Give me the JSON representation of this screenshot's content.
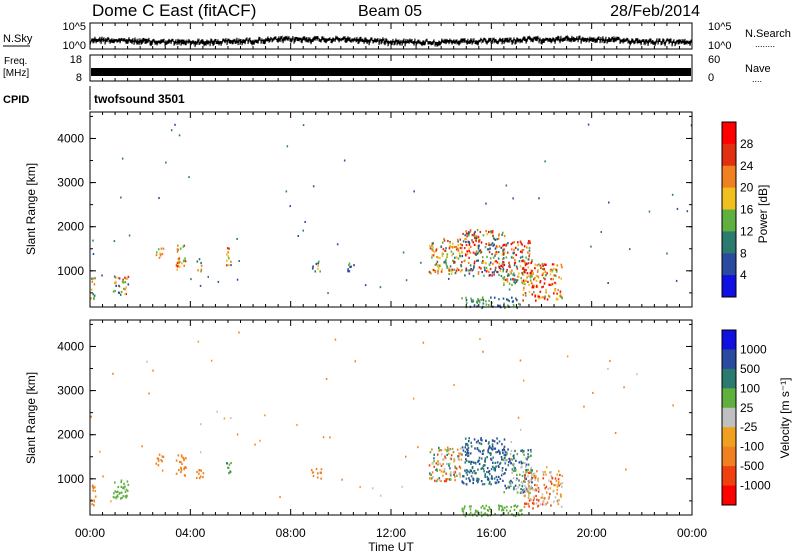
{
  "header": {
    "station": "Dome C East (fitACF)",
    "beam": "Beam 05",
    "date": "28/Feb/2014"
  },
  "nsky_panel": {
    "label": "N.Sky",
    "y_ticks": [
      "10^5",
      "10^0"
    ],
    "right_ticks": [
      "10^5",
      "10^0"
    ],
    "right_label": "N.Search",
    "right_marker": "........"
  },
  "freq_panel": {
    "label_top": "Freq.",
    "label_unit": "[MHz]",
    "y_ticks": [
      "18",
      "8"
    ],
    "right_ticks": [
      "60",
      "0"
    ],
    "right_label": "Nave",
    "right_marker": "...."
  },
  "cpid": {
    "label": "CPID",
    "value": "twofsound 3501"
  },
  "chart_data": [
    {
      "type": "scatter",
      "name": "power",
      "ylabel": "Slant Range [km]",
      "y_ticks": [
        "4000",
        "3000",
        "2000",
        "1000"
      ],
      "y_tick_values": [
        4000,
        3000,
        2000,
        1000
      ],
      "ylim": [
        180,
        4600
      ],
      "xlim": [
        0,
        24
      ],
      "colorbar": {
        "label": "Power [dB]",
        "ticks": [
          "28",
          "24",
          "20",
          "16",
          "12",
          "8",
          "4"
        ],
        "colors": [
          "#1010e0",
          "#2a4aa0",
          "#2a7a70",
          "#60b040",
          "#f0c020",
          "#f08020",
          "#e03010",
          "#ff0000"
        ]
      },
      "clusters": [
        {
          "t0": 0.0,
          "t1": 0.2,
          "r0": 380,
          "r1": 900,
          "v": [
            2,
            5
          ]
        },
        {
          "t0": 0.9,
          "t1": 1.5,
          "r0": 480,
          "r1": 900,
          "v": [
            1,
            6
          ]
        },
        {
          "t0": 2.6,
          "t1": 2.9,
          "r0": 1300,
          "r1": 1580,
          "v": [
            2,
            6
          ]
        },
        {
          "t0": 3.4,
          "t1": 3.8,
          "r0": 1050,
          "r1": 1600,
          "v": [
            3,
            7
          ]
        },
        {
          "t0": 4.2,
          "t1": 4.5,
          "r0": 1000,
          "r1": 1300,
          "v": [
            2,
            5
          ]
        },
        {
          "t0": 5.4,
          "t1": 5.6,
          "r0": 1150,
          "r1": 1550,
          "v": [
            3,
            6
          ]
        },
        {
          "t0": 8.8,
          "t1": 9.2,
          "r0": 1000,
          "r1": 1250,
          "v": [
            1,
            4
          ]
        },
        {
          "t0": 10.2,
          "t1": 10.5,
          "r0": 1000,
          "r1": 1200,
          "v": [
            1,
            3
          ]
        },
        {
          "t0": 13.5,
          "t1": 14.8,
          "r0": 950,
          "r1": 1750,
          "v": [
            2,
            6
          ]
        },
        {
          "t0": 14.8,
          "t1": 16.5,
          "r0": 900,
          "r1": 1950,
          "v": [
            1,
            7
          ]
        },
        {
          "t0": 16.4,
          "t1": 17.6,
          "r0": 700,
          "r1": 1700,
          "v": [
            2,
            7
          ]
        },
        {
          "t0": 17.2,
          "t1": 18.8,
          "r0": 350,
          "r1": 1200,
          "v": [
            3,
            8
          ]
        },
        {
          "t0": 14.8,
          "t1": 17.2,
          "r0": 180,
          "r1": 420,
          "v": [
            1,
            3
          ]
        }
      ]
    },
    {
      "type": "scatter",
      "name": "velocity",
      "ylabel": "Slant Range [km]",
      "y_ticks": [
        "4000",
        "3000",
        "2000",
        "1000"
      ],
      "y_tick_values": [
        4000,
        3000,
        2000,
        1000
      ],
      "ylim": [
        180,
        4600
      ],
      "xlim": [
        0,
        24
      ],
      "colorbar": {
        "label": "Velocity [m s⁻¹]",
        "ticks": [
          "1000",
          "500",
          "100",
          "25",
          "-25",
          "-100",
          "-500",
          "-1000"
        ],
        "colors": [
          "#ff0000",
          "#f04010",
          "#f08020",
          "#f0a020",
          "#c0c0c0",
          "#60b040",
          "#2a7a70",
          "#2a4aa0",
          "#1010e0"
        ]
      },
      "clusters": [
        {
          "t0": 0.0,
          "t1": 0.2,
          "r0": 380,
          "r1": 900,
          "v": [
            2,
            3
          ]
        },
        {
          "t0": 0.9,
          "t1": 1.5,
          "r0": 480,
          "r1": 1000,
          "v": [
            5,
            5
          ]
        },
        {
          "t0": 2.6,
          "t1": 2.9,
          "r0": 1300,
          "r1": 1580,
          "v": [
            2,
            2
          ]
        },
        {
          "t0": 3.4,
          "t1": 3.8,
          "r0": 1050,
          "r1": 1600,
          "v": [
            2,
            2
          ]
        },
        {
          "t0": 4.2,
          "t1": 4.5,
          "r0": 1000,
          "r1": 1300,
          "v": [
            2,
            2
          ]
        },
        {
          "t0": 5.4,
          "t1": 5.6,
          "r0": 1150,
          "r1": 1550,
          "v": [
            5,
            6
          ]
        },
        {
          "t0": 8.8,
          "t1": 9.2,
          "r0": 1000,
          "r1": 1250,
          "v": [
            2,
            2
          ]
        },
        {
          "t0": 13.5,
          "t1": 14.8,
          "r0": 950,
          "r1": 1750,
          "v": [
            1,
            6
          ]
        },
        {
          "t0": 14.8,
          "t1": 16.5,
          "r0": 900,
          "r1": 1950,
          "v": [
            6,
            7
          ]
        },
        {
          "t0": 16.4,
          "t1": 17.6,
          "r0": 700,
          "r1": 1700,
          "v": [
            4,
            7
          ]
        },
        {
          "t0": 17.2,
          "t1": 18.8,
          "r0": 350,
          "r1": 1200,
          "v": [
            1,
            4
          ]
        },
        {
          "t0": 14.8,
          "t1": 17.2,
          "r0": 180,
          "r1": 420,
          "v": [
            5,
            5
          ]
        }
      ]
    }
  ],
  "x_axis": {
    "label": "Time UT",
    "ticks": [
      "00:00",
      "04:00",
      "08:00",
      "12:00",
      "16:00",
      "20:00",
      "00:00"
    ],
    "tick_hours": [
      0,
      4,
      8,
      12,
      16,
      20,
      24
    ]
  }
}
